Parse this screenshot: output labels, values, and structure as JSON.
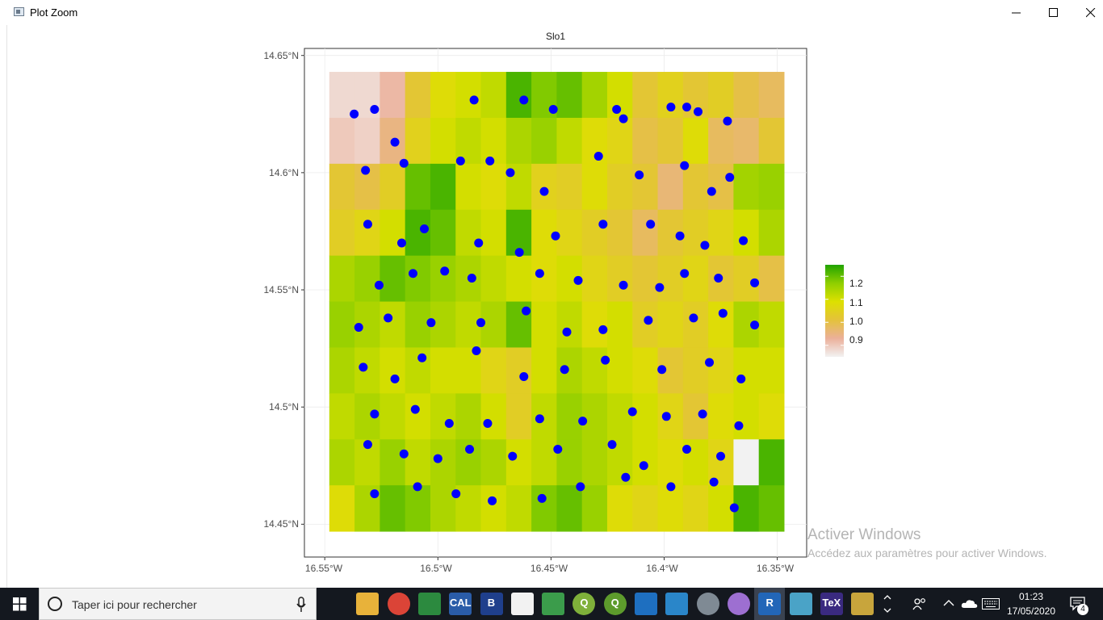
{
  "window": {
    "title": "Plot Zoom"
  },
  "chart_data": {
    "type": "heatmap",
    "title": "Slo1",
    "xlabel": "",
    "ylabel": "",
    "x_ticks": [
      "16.55°W",
      "16.5°W",
      "16.45°W",
      "16.4°W",
      "16.35°W"
    ],
    "x_tick_values": [
      -16.55,
      -16.5,
      -16.45,
      -16.4,
      -16.35
    ],
    "y_ticks": [
      "14.45°N",
      "14.5°N",
      "14.55°N",
      "14.6°N",
      "14.65°N"
    ],
    "y_tick_values": [
      14.45,
      14.5,
      14.55,
      14.6,
      14.65
    ],
    "xlim": [
      -16.559,
      -16.337
    ],
    "ylim": [
      14.436,
      14.653
    ],
    "grid": true,
    "legend": {
      "placement": "right",
      "ticks": [
        "1.2",
        "1.1",
        "1.0",
        "0.9"
      ],
      "tick_values": [
        1.2,
        1.1,
        1.0,
        0.9
      ],
      "range": [
        0.85,
        1.25
      ],
      "colors": [
        "#f2f2f2",
        "#ebb09a",
        "#e4c23b",
        "#dde000",
        "#8fcf00",
        "#21a300"
      ]
    },
    "raster_extent": {
      "x": [
        -16.548,
        -16.347
      ],
      "y": [
        14.447,
        14.643
      ]
    },
    "raster_values": [
      [
        0.88,
        0.88,
        0.92,
        1.02,
        1.08,
        1.1,
        1.12,
        1.22,
        1.18,
        1.2,
        1.15,
        1.1,
        1.02,
        1.05,
        1.02,
        1.04,
        1.0,
        0.98
      ],
      [
        0.9,
        0.89,
        0.95,
        1.05,
        1.1,
        1.12,
        1.1,
        1.14,
        1.16,
        1.12,
        1.08,
        1.06,
        1.0,
        1.02,
        1.08,
        0.98,
        0.97,
        1.02
      ],
      [
        1.02,
        1.0,
        1.04,
        1.2,
        1.22,
        1.1,
        1.08,
        1.12,
        1.05,
        1.04,
        1.08,
        1.04,
        1.02,
        0.96,
        1.02,
        1.0,
        1.15,
        1.16
      ],
      [
        1.04,
        1.06,
        1.1,
        1.22,
        1.2,
        1.12,
        1.1,
        1.22,
        1.08,
        1.06,
        1.04,
        1.02,
        0.98,
        1.02,
        1.04,
        1.06,
        1.1,
        1.14
      ],
      [
        1.14,
        1.16,
        1.2,
        1.18,
        1.16,
        1.14,
        1.12,
        1.1,
        1.08,
        1.1,
        1.06,
        1.04,
        1.02,
        1.04,
        1.06,
        1.02,
        1.04,
        1.0
      ],
      [
        1.16,
        1.14,
        1.12,
        1.16,
        1.14,
        1.12,
        1.14,
        1.2,
        1.1,
        1.12,
        1.08,
        1.1,
        1.04,
        1.06,
        1.04,
        1.08,
        1.14,
        1.12
      ],
      [
        1.14,
        1.12,
        1.1,
        1.12,
        1.1,
        1.1,
        1.06,
        1.04,
        1.1,
        1.14,
        1.12,
        1.1,
        1.08,
        1.02,
        1.04,
        1.06,
        1.1,
        1.1
      ],
      [
        1.12,
        1.14,
        1.12,
        1.1,
        1.12,
        1.14,
        1.1,
        1.04,
        1.12,
        1.16,
        1.14,
        1.12,
        1.1,
        1.06,
        1.02,
        1.08,
        1.1,
        1.08
      ],
      [
        1.14,
        1.12,
        1.16,
        1.12,
        1.14,
        1.16,
        1.14,
        1.1,
        1.12,
        1.16,
        1.14,
        1.12,
        1.1,
        1.08,
        1.1,
        1.06,
        0.85,
        1.22
      ],
      [
        1.08,
        1.14,
        1.2,
        1.18,
        1.14,
        1.12,
        1.1,
        1.12,
        1.18,
        1.2,
        1.16,
        1.08,
        1.06,
        1.08,
        1.06,
        1.1,
        1.22,
        1.2
      ]
    ],
    "series": [
      {
        "type": "scatter",
        "color": "#0000ff",
        "x": [
          -16.537,
          -16.528,
          -16.519,
          -16.484,
          -16.462,
          -16.449,
          -16.421,
          -16.418,
          -16.397,
          -16.39,
          -16.385,
          -16.372,
          -16.532,
          -16.515,
          -16.49,
          -16.477,
          -16.468,
          -16.453,
          -16.429,
          -16.411,
          -16.391,
          -16.379,
          -16.371,
          -16.531,
          -16.516,
          -16.506,
          -16.482,
          -16.464,
          -16.448,
          -16.427,
          -16.406,
          -16.393,
          -16.382,
          -16.365,
          -16.526,
          -16.511,
          -16.497,
          -16.485,
          -16.455,
          -16.438,
          -16.418,
          -16.402,
          -16.391,
          -16.376,
          -16.36,
          -16.535,
          -16.522,
          -16.503,
          -16.481,
          -16.461,
          -16.443,
          -16.427,
          -16.407,
          -16.387,
          -16.374,
          -16.36,
          -16.533,
          -16.519,
          -16.507,
          -16.483,
          -16.462,
          -16.444,
          -16.426,
          -16.401,
          -16.38,
          -16.366,
          -16.528,
          -16.51,
          -16.495,
          -16.478,
          -16.455,
          -16.436,
          -16.414,
          -16.399,
          -16.383,
          -16.367,
          -16.531,
          -16.515,
          -16.5,
          -16.486,
          -16.467,
          -16.447,
          -16.423,
          -16.409,
          -16.39,
          -16.375,
          -16.528,
          -16.509,
          -16.492,
          -16.476,
          -16.454,
          -16.437,
          -16.417,
          -16.397,
          -16.378,
          -16.369
        ],
        "y": [
          14.625,
          14.627,
          14.613,
          14.631,
          14.631,
          14.627,
          14.627,
          14.623,
          14.628,
          14.628,
          14.626,
          14.622,
          14.601,
          14.604,
          14.605,
          14.605,
          14.6,
          14.592,
          14.607,
          14.599,
          14.603,
          14.592,
          14.598,
          14.578,
          14.57,
          14.576,
          14.57,
          14.566,
          14.573,
          14.578,
          14.578,
          14.573,
          14.569,
          14.571,
          14.552,
          14.557,
          14.558,
          14.555,
          14.557,
          14.554,
          14.552,
          14.551,
          14.557,
          14.555,
          14.553,
          14.534,
          14.538,
          14.536,
          14.536,
          14.541,
          14.532,
          14.533,
          14.537,
          14.538,
          14.54,
          14.535,
          14.517,
          14.512,
          14.521,
          14.524,
          14.513,
          14.516,
          14.52,
          14.516,
          14.519,
          14.512,
          14.497,
          14.499,
          14.493,
          14.493,
          14.495,
          14.494,
          14.498,
          14.496,
          14.497,
          14.492,
          14.484,
          14.48,
          14.478,
          14.482,
          14.479,
          14.482,
          14.484,
          14.475,
          14.482,
          14.479,
          14.463,
          14.466,
          14.463,
          14.46,
          14.461,
          14.466,
          14.47,
          14.466,
          14.468,
          14.457
        ]
      }
    ]
  },
  "watermark": {
    "title": "Activer Windows",
    "subtitle": "Accédez aux paramètres pour activer Windows."
  },
  "taskbar": {
    "search_placeholder": "Taper ici pour rechercher",
    "apps": [
      {
        "name": "task-view",
        "color": "#14181f",
        "glyph": ""
      },
      {
        "name": "file-explorer",
        "color": "#e8b23a",
        "glyph": ""
      },
      {
        "name": "chrome",
        "color": "#db4437",
        "glyph": ""
      },
      {
        "name": "sheets",
        "color": "#2c8a3f",
        "glyph": ""
      },
      {
        "name": "calc",
        "color": "#2a5ca8",
        "glyph": "CAL"
      },
      {
        "name": "b-app",
        "color": "#1f3f8c",
        "glyph": "B"
      },
      {
        "name": "document",
        "color": "#f2f2f2",
        "glyph": ""
      },
      {
        "name": "image-app",
        "color": "#3b9c4b",
        "glyph": ""
      },
      {
        "name": "qgis",
        "color": "#7fb03a",
        "glyph": "Q"
      },
      {
        "name": "qgis-2",
        "color": "#5d9b2c",
        "glyph": "Q"
      },
      {
        "name": "window-app",
        "color": "#1e6fc0",
        "glyph": ""
      },
      {
        "name": "search-app",
        "color": "#2a86c9",
        "glyph": ""
      },
      {
        "name": "globe-app",
        "color": "#7f8a94",
        "glyph": ""
      },
      {
        "name": "github-app",
        "color": "#9d6fd1",
        "glyph": ""
      },
      {
        "name": "r-app",
        "color": "#2266b8",
        "glyph": "R"
      },
      {
        "name": "notebook-app",
        "color": "#4aa3c7",
        "glyph": ""
      },
      {
        "name": "tex-app",
        "color": "#3a2a80",
        "glyph": "TeX"
      },
      {
        "name": "paint-app",
        "color": "#c8a53c",
        "glyph": ""
      }
    ],
    "time": "01:23",
    "date": "17/05/2020",
    "notification_count": "4"
  }
}
